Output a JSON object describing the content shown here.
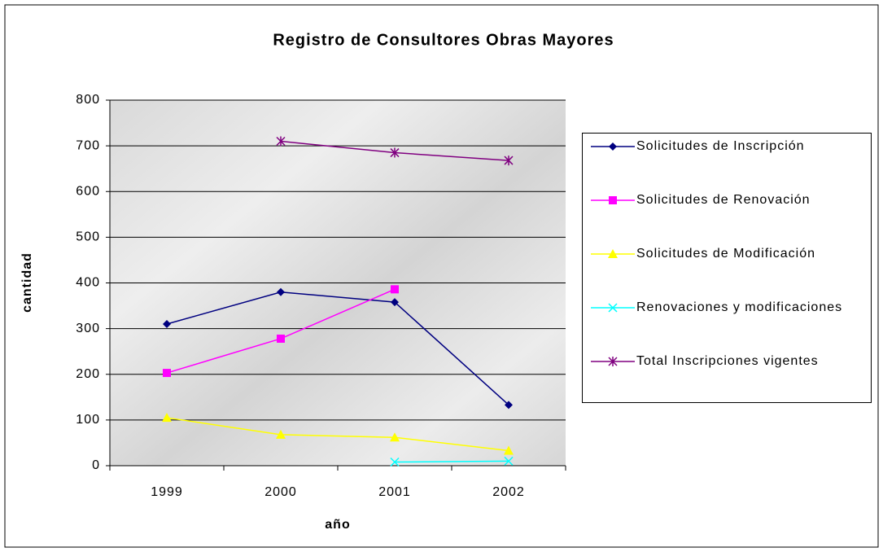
{
  "chart_data": {
    "type": "line",
    "title": "Registro de Consultores Obras Mayores",
    "x_label": "año",
    "y_label": "cantidad",
    "categories": [
      "1999",
      "2000",
      "2001",
      "2002"
    ],
    "ylim": [
      0,
      800
    ],
    "yticks": [
      0,
      100,
      200,
      300,
      400,
      500,
      600,
      700,
      800
    ],
    "grid": true,
    "legend": "right",
    "series": [
      {
        "name": "Solicitudes de Inscripción",
        "color": "#000080",
        "marker": "diamond",
        "values": [
          310,
          380,
          358,
          133
        ]
      },
      {
        "name": "Solicitudes de Renovación",
        "color": "#ff00ff",
        "marker": "square",
        "values": [
          203,
          278,
          386,
          null
        ]
      },
      {
        "name": "Solicitudes de Modificación",
        "color": "#ffff00",
        "marker": "triangle",
        "values": [
          105,
          68,
          62,
          33
        ]
      },
      {
        "name": "Renovaciones y modificaciones",
        "color": "#00ffff",
        "marker": "x",
        "values": [
          null,
          null,
          8,
          10
        ]
      },
      {
        "name": "Total Inscripciones vigentes",
        "color": "#800080",
        "marker": "star",
        "values": [
          null,
          710,
          685,
          668
        ]
      }
    ]
  }
}
